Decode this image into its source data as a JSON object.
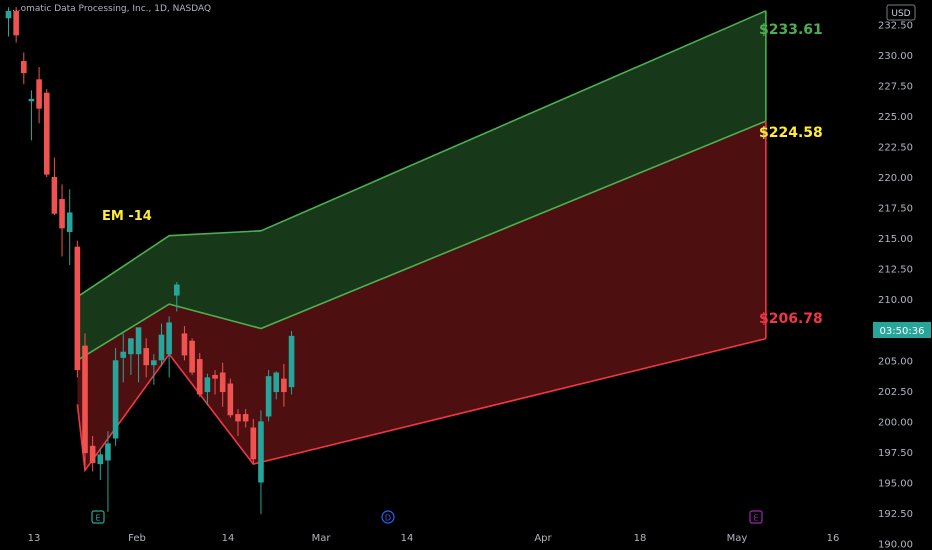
{
  "header": {
    "symbol_title": "...omatic Data Processing, Inc., 1D, NASDAQ",
    "currency": "USD"
  },
  "price_axis": {
    "ticks": [
      "232.50",
      "230.00",
      "227.50",
      "225.00",
      "222.50",
      "220.00",
      "217.50",
      "215.00",
      "212.50",
      "210.00",
      "207.50",
      "205.00",
      "202.50",
      "200.00",
      "197.50",
      "195.00",
      "192.50",
      "190.00"
    ],
    "countdown": "03:50:36",
    "countdown_color": "#26a69a"
  },
  "time_axis": {
    "labels": [
      "13",
      "Feb",
      "14",
      "Mar",
      "14",
      "Apr",
      "18",
      "May",
      "16"
    ]
  },
  "markers": [
    {
      "label": "E",
      "color": "#26a69a",
      "shape": "square"
    },
    {
      "label": "D",
      "color": "#2962ff",
      "shape": "circle"
    },
    {
      "label": "E",
      "color": "#9c27b0",
      "shape": "square"
    }
  ],
  "annotations": {
    "em_label": "EM -14",
    "em_color": "#ffeb3b",
    "upper_price": "$233.61",
    "mid_price": "$224.58",
    "lower_price": "$206.78",
    "upper_color": "#4caf50",
    "mid_color": "#ffeb3b",
    "lower_color": "#f23645"
  },
  "chart_data": {
    "type": "candlestick",
    "ylim": [
      189.8,
      234.0
    ],
    "candles": [
      {
        "d": 0,
        "o": 233.0,
        "h": 233.9,
        "l": 231.5,
        "c": 233.6
      },
      {
        "d": 1,
        "o": 233.6,
        "h": 233.9,
        "l": 231.0,
        "c": 231.6
      },
      {
        "d": 2,
        "o": 229.5,
        "h": 230.2,
        "l": 227.6,
        "c": 228.5
      },
      {
        "d": 3,
        "o": 226.2,
        "h": 227.1,
        "l": 223.0,
        "c": 226.4
      },
      {
        "d": 4,
        "o": 228.0,
        "h": 229.0,
        "l": 224.4,
        "c": 225.6
      },
      {
        "d": 5,
        "o": 226.9,
        "h": 227.2,
        "l": 220.0,
        "c": 220.2
      },
      {
        "d": 6,
        "o": 220.0,
        "h": 221.6,
        "l": 216.9,
        "c": 217.0
      },
      {
        "d": 7,
        "o": 218.2,
        "h": 219.4,
        "l": 213.5,
        "c": 215.8
      },
      {
        "d": 8,
        "o": 215.5,
        "h": 219.0,
        "l": 212.8,
        "c": 217.1
      },
      {
        "d": 9,
        "o": 214.3,
        "h": 214.8,
        "l": 203.6,
        "c": 204.2
      },
      {
        "d": 10,
        "o": 206.2,
        "h": 207.2,
        "l": 196.0,
        "c": 197.4
      },
      {
        "d": 11,
        "o": 198.0,
        "h": 198.8,
        "l": 195.9,
        "c": 196.6
      },
      {
        "d": 12,
        "o": 196.5,
        "h": 197.8,
        "l": 195.2,
        "c": 197.3
      },
      {
        "d": 13,
        "o": 196.8,
        "h": 199.2,
        "l": 192.6,
        "c": 198.2
      },
      {
        "d": 14,
        "o": 198.6,
        "h": 206.0,
        "l": 198.0,
        "c": 205.0
      },
      {
        "d": 15,
        "o": 205.2,
        "h": 207.2,
        "l": 203.2,
        "c": 205.7
      },
      {
        "d": 16,
        "o": 205.5,
        "h": 206.8,
        "l": 203.8,
        "c": 206.8
      },
      {
        "d": 17,
        "o": 205.5,
        "h": 207.4,
        "l": 203.2,
        "c": 207.7
      },
      {
        "d": 18,
        "o": 206.0,
        "h": 206.8,
        "l": 203.6,
        "c": 204.6
      },
      {
        "d": 19,
        "o": 204.6,
        "h": 205.5,
        "l": 203.0,
        "c": 205.0
      },
      {
        "d": 20,
        "o": 205.0,
        "h": 208.0,
        "l": 204.5,
        "c": 207.1
      },
      {
        "d": 21,
        "o": 205.5,
        "h": 208.6,
        "l": 203.6,
        "c": 208.1
      },
      {
        "d": 22,
        "o": 210.3,
        "h": 211.4,
        "l": 209.0,
        "c": 211.2
      },
      {
        "d": 23,
        "o": 207.2,
        "h": 207.8,
        "l": 205.0,
        "c": 205.4
      },
      {
        "d": 24,
        "o": 206.6,
        "h": 206.8,
        "l": 203.8,
        "c": 204.0
      },
      {
        "d": 25,
        "o": 205.1,
        "h": 205.6,
        "l": 202.0,
        "c": 202.2
      },
      {
        "d": 26,
        "o": 202.4,
        "h": 203.9,
        "l": 201.3,
        "c": 203.6
      },
      {
        "d": 27,
        "o": 203.8,
        "h": 204.2,
        "l": 202.2,
        "c": 203.5
      },
      {
        "d": 28,
        "o": 204.0,
        "h": 204.8,
        "l": 201.2,
        "c": 202.4
      },
      {
        "d": 29,
        "o": 203.1,
        "h": 203.5,
        "l": 200.3,
        "c": 200.5
      },
      {
        "d": 30,
        "o": 200.6,
        "h": 201.0,
        "l": 198.8,
        "c": 200.0
      },
      {
        "d": 31,
        "o": 200.6,
        "h": 201.0,
        "l": 199.5,
        "c": 200.0
      },
      {
        "d": 32,
        "o": 199.5,
        "h": 200.2,
        "l": 196.5,
        "c": 196.9
      },
      {
        "d": 33,
        "o": 195.0,
        "h": 200.9,
        "l": 192.4,
        "c": 200.0
      },
      {
        "d": 34,
        "o": 200.4,
        "h": 204.2,
        "l": 200.0,
        "c": 203.7
      },
      {
        "d": 35,
        "o": 202.4,
        "h": 204.1,
        "l": 201.8,
        "c": 204.0
      },
      {
        "d": 36,
        "o": 203.5,
        "h": 204.7,
        "l": 201.2,
        "c": 202.4
      },
      {
        "d": 37,
        "o": 202.8,
        "h": 207.4,
        "l": 202.2,
        "c": 207.0
      }
    ],
    "bands": {
      "upper": [
        [
          9,
          210.2
        ],
        [
          21,
          215.2
        ],
        [
          33,
          215.6
        ],
        [
          99,
          233.61
        ]
      ],
      "middle": [
        [
          9,
          205.0
        ],
        [
          21,
          209.6
        ],
        [
          33,
          207.6
        ],
        [
          99,
          224.58
        ]
      ],
      "lower": [
        [
          9,
          201.4
        ],
        [
          10,
          196.0
        ],
        [
          21,
          205.5
        ],
        [
          32,
          196.5
        ],
        [
          99,
          206.78
        ]
      ]
    }
  }
}
